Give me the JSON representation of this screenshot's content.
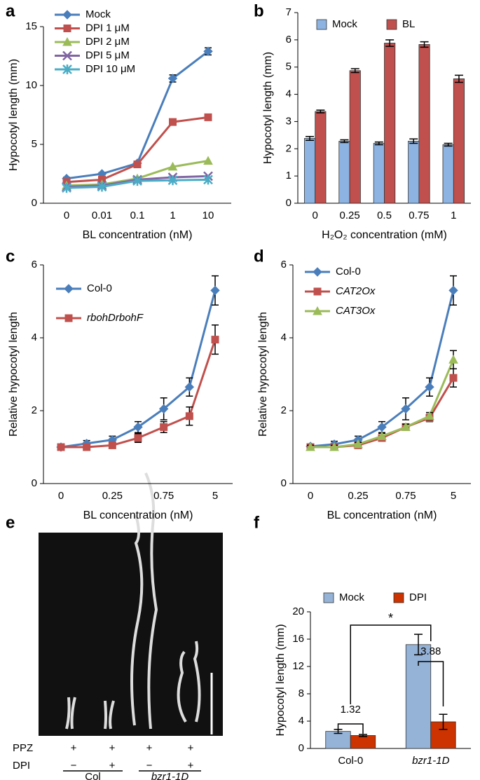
{
  "chart_data": [
    {
      "type": "line",
      "label": "a",
      "ylabel": "Hypocotyl length (mm)",
      "xlabel": "BL concentration (nM)",
      "categories": [
        "0",
        "0.01",
        "0.1",
        "1",
        "10"
      ],
      "ylim": [
        0,
        15
      ],
      "yticks": [
        0,
        5,
        10,
        15
      ],
      "series": [
        {
          "name": "Mock",
          "color": "#4a7ebb",
          "marker": "diamond",
          "values": [
            2.1,
            2.5,
            3.4,
            10.6,
            12.9
          ],
          "errors": [
            0.1,
            0.1,
            0.15,
            0.3,
            0.3
          ]
        },
        {
          "name": "DPI 1 μM",
          "color": "#c0504d",
          "marker": "square",
          "values": [
            1.8,
            2.0,
            3.3,
            6.9,
            7.3
          ],
          "errors": [
            0.1,
            0.1,
            0.15,
            0.2,
            0.2
          ]
        },
        {
          "name": "DPI 2 μM",
          "color": "#9bbb59",
          "marker": "triangle",
          "values": [
            1.5,
            1.6,
            2.1,
            3.1,
            3.6
          ]
        },
        {
          "name": "DPI 5 μM",
          "color": "#8064a2",
          "marker": "x",
          "values": [
            1.4,
            1.5,
            2.0,
            2.2,
            2.3
          ]
        },
        {
          "name": "DPI 10 μM",
          "color": "#4bacc6",
          "marker": "star",
          "values": [
            1.3,
            1.4,
            1.9,
            1.95,
            2.0
          ]
        }
      ]
    },
    {
      "type": "bar",
      "label": "b",
      "ylabel": "Hypocotyl length (mm)",
      "xlabel": "H₂O₂ concentration (mM)",
      "categories": [
        "0",
        "0.25",
        "0.5",
        "0.75",
        "1"
      ],
      "ylim": [
        0,
        7
      ],
      "yticks": [
        0,
        1,
        2,
        3,
        4,
        5,
        6,
        7
      ],
      "series": [
        {
          "name": "Mock",
          "color": "#8db3e2",
          "values": [
            2.38,
            2.28,
            2.2,
            2.28,
            2.15
          ],
          "errors": [
            0.07,
            0.05,
            0.05,
            0.08,
            0.05
          ]
        },
        {
          "name": "BL",
          "color": "#c0504d",
          "values": [
            3.37,
            4.87,
            5.88,
            5.83,
            4.57
          ],
          "errors": [
            0.05,
            0.07,
            0.12,
            0.1,
            0.13
          ]
        }
      ]
    },
    {
      "type": "line",
      "label": "c",
      "ylabel": "Relative hypocotyl length",
      "xlabel": "BL concentration (nM)",
      "categories": [
        "0",
        null,
        "0.25",
        null,
        "0.75",
        null,
        "5"
      ],
      "ylim": [
        0,
        6
      ],
      "yticks": [
        0,
        2,
        4,
        6
      ],
      "series": [
        {
          "name": "Col-0",
          "color": "#4a7ebb",
          "marker": "diamond",
          "values": [
            1.0,
            1.1,
            1.2,
            1.55,
            2.05,
            2.65,
            5.3
          ],
          "errors": [
            0.05,
            0.08,
            0.1,
            0.15,
            0.3,
            0.25,
            0.4
          ]
        },
        {
          "name": "rbohDrbohF",
          "italic": true,
          "color": "#c0504d",
          "marker": "square",
          "values": [
            1.0,
            1.0,
            1.05,
            1.25,
            1.55,
            1.85,
            3.95
          ],
          "errors": [
            0.05,
            0.05,
            0.08,
            0.12,
            0.15,
            0.25,
            0.4
          ]
        }
      ]
    },
    {
      "type": "line",
      "label": "d",
      "ylabel": "Relative hypocotyl length",
      "xlabel": "BL concentration (nM)",
      "categories": [
        "0",
        null,
        "0.25",
        null,
        "0.75",
        null,
        "5"
      ],
      "ylim": [
        0,
        6
      ],
      "yticks": [
        0,
        2,
        4,
        6
      ],
      "series": [
        {
          "name": "Col-0",
          "color": "#4a7ebb",
          "marker": "diamond",
          "values": [
            1.02,
            1.08,
            1.2,
            1.55,
            2.05,
            2.65,
            5.3
          ],
          "errors": [
            0.05,
            0.08,
            0.1,
            0.15,
            0.3,
            0.25,
            0.4
          ]
        },
        {
          "name": "CAT2Ox",
          "italic": true,
          "color": "#c0504d",
          "marker": "square",
          "values": [
            1.0,
            1.0,
            1.05,
            1.25,
            1.55,
            1.8,
            2.9
          ],
          "errors": [
            0.05,
            0.05,
            0.05,
            0.08,
            0.08,
            0.1,
            0.25
          ]
        },
        {
          "name": "CAT3Ox",
          "italic": true,
          "color": "#9bbb59",
          "marker": "triangle",
          "values": [
            1.0,
            1.0,
            1.08,
            1.3,
            1.55,
            1.85,
            3.4
          ],
          "errors": [
            0.05,
            0.05,
            0.05,
            0.08,
            0.08,
            0.1,
            0.25
          ]
        }
      ]
    },
    {
      "type": "bar",
      "label": "f",
      "ylabel": "Hypocotyl length (mm)",
      "categories": [
        "Col-0",
        "bzr1-1D"
      ],
      "category_style": [
        "normal",
        "italic"
      ],
      "ylim": [
        0,
        20
      ],
      "yticks": [
        0,
        4,
        8,
        12,
        16,
        20
      ],
      "annotations": [
        "1.32",
        "3.88",
        "*"
      ],
      "series": [
        {
          "name": "Mock",
          "color": "#95b3d7",
          "values": [
            2.5,
            15.2
          ],
          "errors": [
            0.3,
            1.5
          ]
        },
        {
          "name": "DPI",
          "color": "#cc3300",
          "values": [
            1.9,
            3.9
          ],
          "errors": [
            0.15,
            1.1
          ]
        }
      ]
    }
  ],
  "panel_e": {
    "label": "e",
    "rows": [
      {
        "name": "PPZ",
        "marks": [
          "+",
          "+",
          "+",
          "+"
        ]
      },
      {
        "name": "DPI",
        "marks": [
          "−",
          "+",
          "−",
          "+"
        ]
      }
    ],
    "groups": [
      "Col",
      "bzr1-1D"
    ]
  }
}
